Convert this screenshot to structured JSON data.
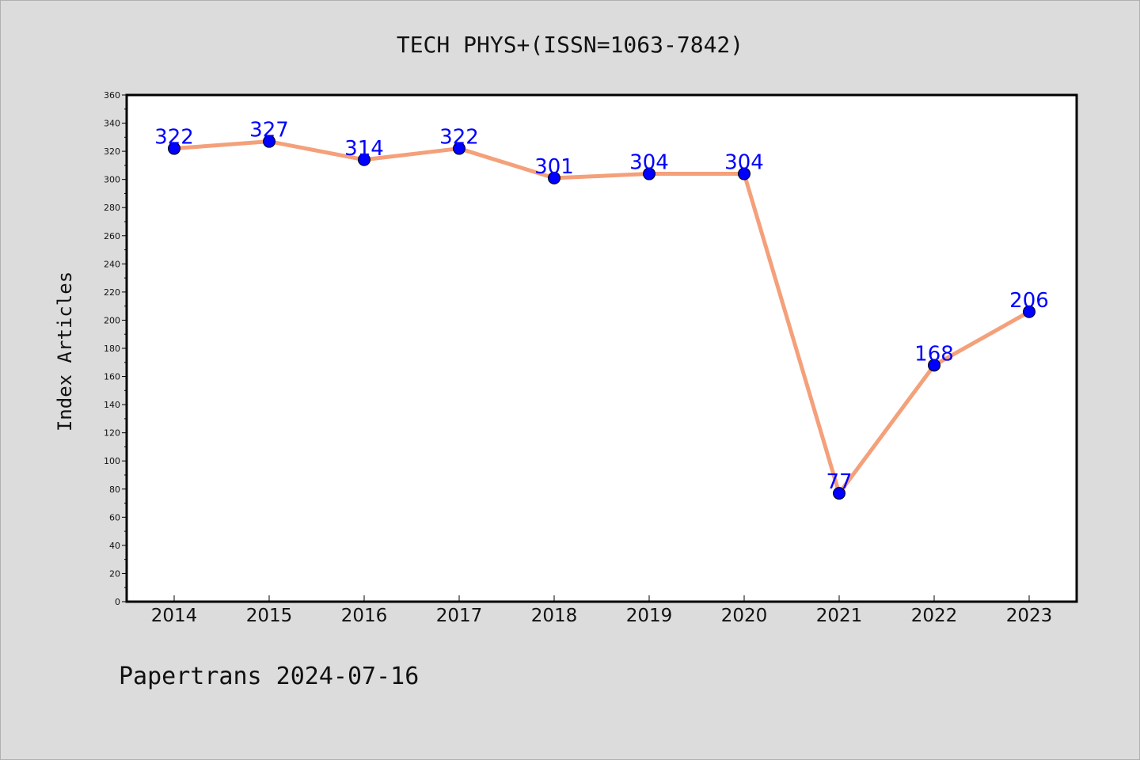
{
  "footer": "Papertrans 2024-07-16",
  "colors": {
    "background": "#dcdcdc",
    "plot_background": "#ffffff",
    "line": "#f4a07a",
    "marker": "#0000ff",
    "label": "#0000ff"
  },
  "chart_data": {
    "type": "line",
    "title": "TECH PHYS+(ISSN=1063-7842)",
    "xlabel": "",
    "ylabel": "Index Articles",
    "x": [
      "2014",
      "2015",
      "2016",
      "2017",
      "2018",
      "2019",
      "2020",
      "2021",
      "2022",
      "2023"
    ],
    "series": [
      {
        "values": [
          322,
          327,
          314,
          322,
          301,
          304,
          304,
          77,
          168,
          206
        ]
      }
    ],
    "ylim": [
      0,
      360
    ],
    "yticks": [
      0,
      20,
      40,
      60,
      80,
      100,
      120,
      140,
      160,
      180,
      200,
      220,
      240,
      260,
      280,
      300,
      320,
      340,
      360
    ],
    "grid": false,
    "data_labels": true,
    "marker": "circle"
  }
}
